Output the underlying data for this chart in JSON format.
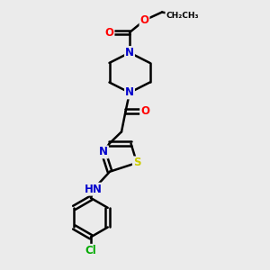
{
  "background_color": "#ebebeb",
  "atom_colors": {
    "C": "#000000",
    "N": "#0000cc",
    "O": "#ff0000",
    "S": "#cccc00",
    "Cl": "#00aa00",
    "H": "#000000"
  },
  "bond_color": "#000000",
  "bond_width": 1.8,
  "font_size_atom": 8.5
}
